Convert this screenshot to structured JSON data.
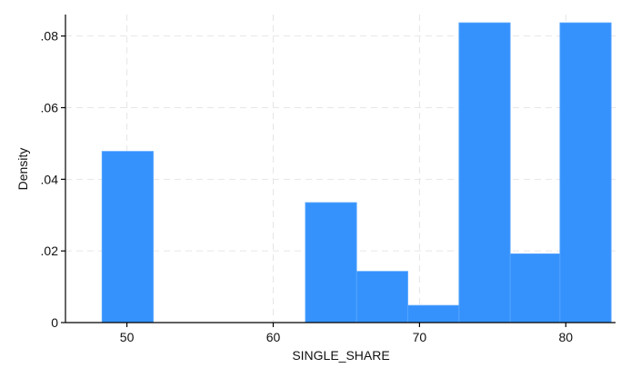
{
  "chart_data": {
    "type": "bar",
    "subtype": "histogram",
    "title": "",
    "xlabel": "SINGLE_SHARE",
    "ylabel": "Density",
    "xlim": [
      45.8,
      83.4
    ],
    "ylim": [
      0,
      0.086
    ],
    "x_ticks": [
      {
        "value": 50,
        "label": "50"
      },
      {
        "value": 60,
        "label": "60"
      },
      {
        "value": 70,
        "label": "70"
      },
      {
        "value": 80,
        "label": "80"
      }
    ],
    "y_ticks": [
      {
        "value": 0,
        "label": "0"
      },
      {
        "value": 0.02,
        "label": ".02"
      },
      {
        "value": 0.04,
        "label": ".04"
      },
      {
        "value": 0.06,
        "label": ".06"
      },
      {
        "value": 0.08,
        "label": ".08"
      }
    ],
    "bins": [
      {
        "start": 48.3,
        "end": 51.8,
        "density": 0.0478
      },
      {
        "start": 51.8,
        "end": 55.2,
        "density": 0
      },
      {
        "start": 55.2,
        "end": 58.7,
        "density": 0
      },
      {
        "start": 58.7,
        "end": 62.2,
        "density": 0
      },
      {
        "start": 62.2,
        "end": 65.7,
        "density": 0.0335
      },
      {
        "start": 65.7,
        "end": 69.2,
        "density": 0.0143
      },
      {
        "start": 69.2,
        "end": 72.7,
        "density": 0.0048
      },
      {
        "start": 72.7,
        "end": 76.2,
        "density": 0.0837
      },
      {
        "start": 76.2,
        "end": 79.6,
        "density": 0.0192
      },
      {
        "start": 79.6,
        "end": 83.1,
        "density": 0.0837
      }
    ],
    "grid": true,
    "legend": "none",
    "colors": {
      "bar_fill": "#3592fd",
      "bar_edge": "#5aa7ff",
      "axis": "#000000",
      "grid": "#e6e6e6",
      "background": "#ffffff"
    }
  }
}
